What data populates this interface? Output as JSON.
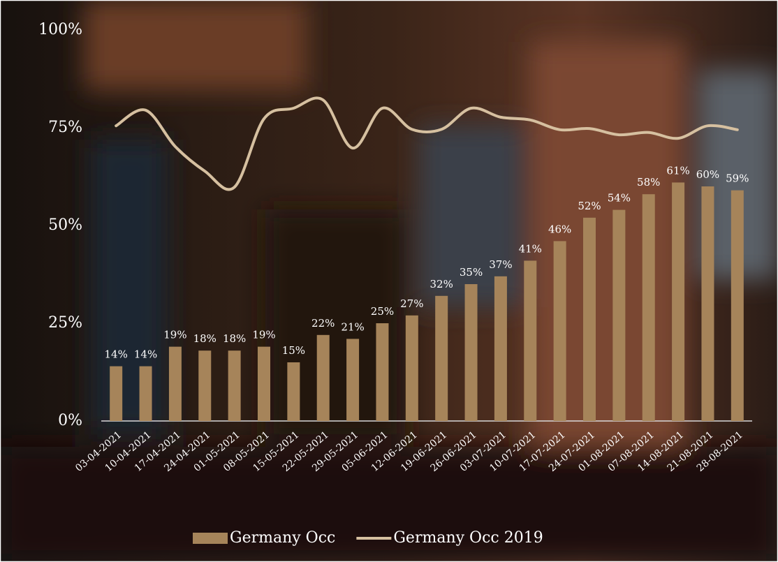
{
  "chart_data": {
    "type": "bar-line",
    "categories": [
      "03-04-2021",
      "10-04-2021",
      "17-04-2021",
      "24-04-2021",
      "01-05-2021",
      "08-05-2021",
      "15-05-2021",
      "22-05-2021",
      "29-05-2021",
      "05-06-2021",
      "12-06-2021",
      "19-06-2021",
      "26-06-2021",
      "03-07-2021",
      "10-07-2021",
      "17-07-2021",
      "24-07-2021",
      "01-08-2021",
      "07-08-2021",
      "14-08-2021",
      "21-08-2021",
      "28-08-2021"
    ],
    "series": [
      {
        "name": "Germany Occ",
        "type": "bar",
        "color": "#a6845a",
        "values": [
          14,
          14,
          19,
          18,
          18,
          19,
          15,
          22,
          21,
          25,
          27,
          32,
          35,
          37,
          41,
          46,
          52,
          54,
          58,
          61,
          60,
          59
        ],
        "value_labels": [
          "14%",
          "14%",
          "19%",
          "18%",
          "18%",
          "19%",
          "15%",
          "22%",
          "21%",
          "25%",
          "27%",
          "32%",
          "35%",
          "37%",
          "41%",
          "46%",
          "52%",
          "54%",
          "58%",
          "61%",
          "60%",
          "59%"
        ]
      },
      {
        "name": "Germany Occ 2019",
        "type": "line",
        "color": "#d6c0a0",
        "values": [
          75.5,
          79.5,
          70.2,
          63.9,
          59.8,
          77.3,
          80,
          82.1,
          69.8,
          80,
          74.6,
          74.6,
          80,
          77.7,
          77,
          74.5,
          74.8,
          73.2,
          73.8,
          72.3,
          75.5,
          74.5
        ]
      }
    ],
    "ylim": [
      0,
      100
    ],
    "yticks": [
      {
        "value": 0,
        "label": "0%"
      },
      {
        "value": 25,
        "label": "25%"
      },
      {
        "value": 50,
        "label": "50%"
      },
      {
        "value": 75,
        "label": "75%"
      },
      {
        "value": 100,
        "label": "100%"
      }
    ],
    "legend": "bottom"
  }
}
